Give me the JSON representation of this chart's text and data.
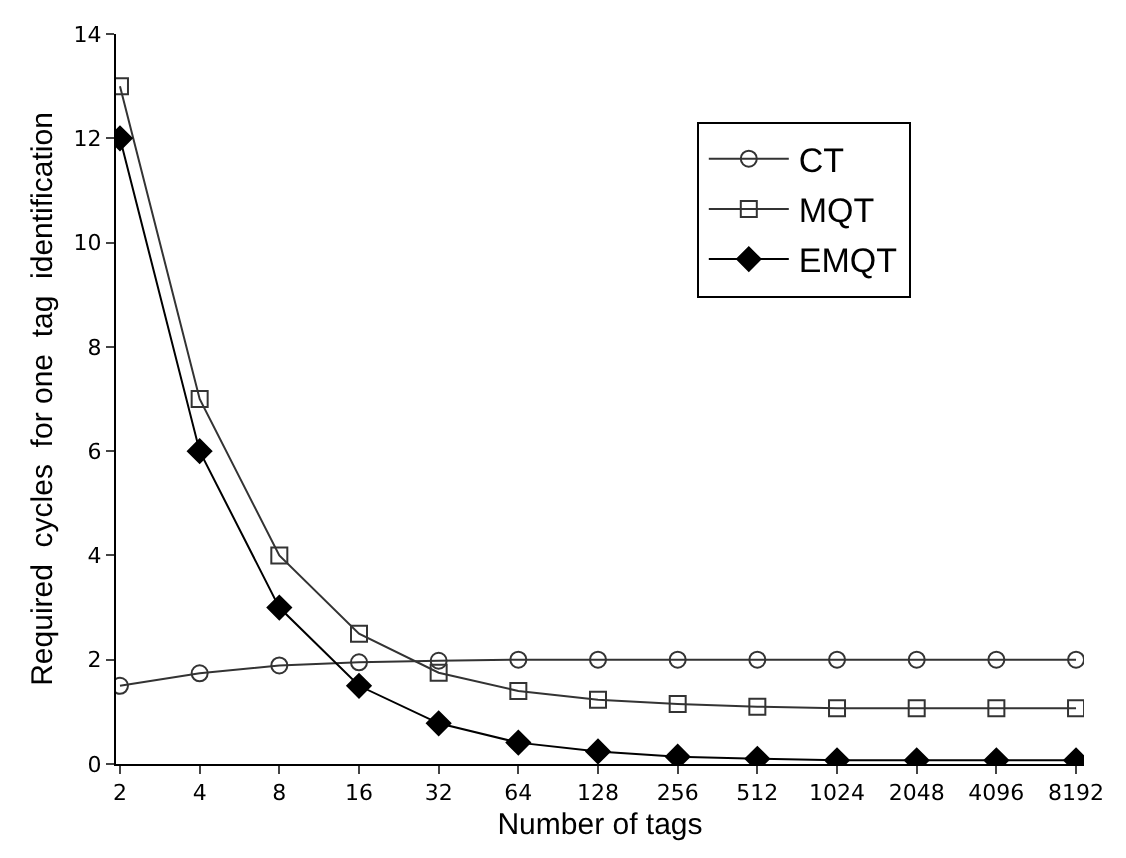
{
  "chart_data": {
    "type": "line",
    "xlabel": "Number of tags",
    "ylabel": "Required  cycles  for one  tag  identification",
    "categories": [
      "2",
      "4",
      "8",
      "16",
      "32",
      "64",
      "128",
      "256",
      "512",
      "1024",
      "2048",
      "4096",
      "8192"
    ],
    "ylim": [
      0,
      14
    ],
    "yticks": [
      0,
      2,
      4,
      6,
      8,
      10,
      12,
      14
    ],
    "legend": "top right",
    "series": [
      {
        "name": "CT",
        "color": "#333333",
        "marker": "circle-open",
        "values": [
          1.5,
          1.74,
          1.89,
          1.95,
          1.98,
          2.0,
          2.0,
          2.0,
          2.0,
          2.0,
          2.0,
          2.0,
          2.0
        ]
      },
      {
        "name": "MQT",
        "color": "#333333",
        "marker": "square-open",
        "values": [
          13,
          7,
          4,
          2.5,
          1.75,
          1.4,
          1.23,
          1.15,
          1.1,
          1.07,
          1.07,
          1.07,
          1.07
        ]
      },
      {
        "name": "EMQT",
        "color": "#000000",
        "marker": "diamond",
        "values": [
          12,
          6,
          3,
          1.5,
          0.78,
          0.41,
          0.24,
          0.14,
          0.1,
          0.07,
          0.07,
          0.07,
          0.07
        ]
      }
    ]
  }
}
